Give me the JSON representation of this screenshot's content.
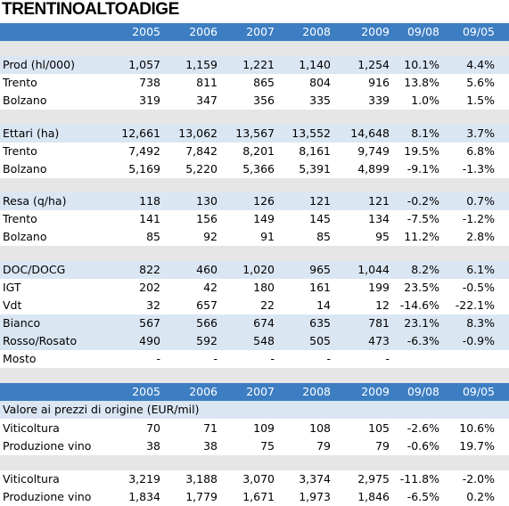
{
  "title": "TRENTINOALTOADIGE",
  "header1": [
    "2005",
    "2006",
    "2007",
    "2008",
    "2009",
    "09/08",
    "09/05"
  ],
  "header2": [
    "2005",
    "2006",
    "2007",
    "2008",
    "2009",
    "09/08",
    "09/05"
  ],
  "sections": [
    {
      "rows": [
        {
          "label": "Prod (hl/000)",
          "values": [
            "1,057",
            "1,159",
            "1,221",
            "1,140",
            "1,254",
            "10.1%",
            "4.4%"
          ]
        },
        {
          "label": "Trento",
          "values": [
            "738",
            "811",
            "865",
            "804",
            "916",
            "13.8%",
            "5.6%"
          ]
        },
        {
          "label": "Bolzano",
          "values": [
            "319",
            "347",
            "356",
            "335",
            "339",
            "1.0%",
            "1.5%"
          ]
        }
      ]
    },
    {
      "rows": [
        {
          "label": "Ettari (ha)",
          "values": [
            "12,661",
            "13,062",
            "13,567",
            "13,552",
            "14,648",
            "8.1%",
            "3.7%"
          ]
        },
        {
          "label": "Trento",
          "values": [
            "7,492",
            "7,842",
            "8,201",
            "8,161",
            "9,749",
            "19.5%",
            "6.8%"
          ]
        },
        {
          "label": "Bolzano",
          "values": [
            "5,169",
            "5,220",
            "5,366",
            "5,391",
            "4,899",
            "-9.1%",
            "-1.3%"
          ]
        }
      ]
    },
    {
      "rows": [
        {
          "label": "Resa (q/ha)",
          "values": [
            "118",
            "130",
            "126",
            "121",
            "121",
            "-0.2%",
            "0.7%"
          ]
        },
        {
          "label": "Trento",
          "values": [
            "141",
            "156",
            "149",
            "145",
            "134",
            "-7.5%",
            "-1.2%"
          ]
        },
        {
          "label": "Bolzano",
          "values": [
            "85",
            "92",
            "91",
            "85",
            "95",
            "11.2%",
            "2.8%"
          ]
        }
      ]
    },
    {
      "rows": [
        {
          "label": "DOC/DOCG",
          "values": [
            "822",
            "460",
            "1,020",
            "965",
            "1,044",
            "8.2%",
            "6.1%"
          ]
        },
        {
          "label": "IGT",
          "values": [
            "202",
            "42",
            "180",
            "161",
            "199",
            "23.5%",
            "-0.5%"
          ]
        },
        {
          "label": "Vdt",
          "values": [
            "32",
            "657",
            "22",
            "14",
            "12",
            "-14.6%",
            "-22.1%"
          ]
        },
        {
          "label": "Bianco",
          "values": [
            "567",
            "566",
            "674",
            "635",
            "781",
            "23.1%",
            "8.3%"
          ]
        },
        {
          "label": "Rosso/Rosato",
          "values": [
            "490",
            "592",
            "548",
            "505",
            "473",
            "-6.3%",
            "-0.9%"
          ]
        },
        {
          "label": "Mosto",
          "values": [
            "-",
            "-",
            "-",
            "-",
            "-",
            "",
            ""
          ]
        }
      ]
    }
  ],
  "value_title": "Valore ai prezzi di origine (EUR/mil)",
  "value_sections": [
    {
      "rows": [
        {
          "label": "Viticoltura",
          "values": [
            "70",
            "71",
            "109",
            "108",
            "105",
            "-2.6%",
            "10.6%"
          ]
        },
        {
          "label": "Produzione vino",
          "values": [
            "38",
            "38",
            "75",
            "79",
            "79",
            "-0.6%",
            "19.7%"
          ]
        }
      ]
    },
    {
      "rows": [
        {
          "label": "Viticoltura",
          "values": [
            "3,219",
            "3,188",
            "3,070",
            "3,374",
            "2,975",
            "-11.8%",
            "-2.0%"
          ]
        },
        {
          "label": "Produzione vino",
          "values": [
            "1,834",
            "1,779",
            "1,671",
            "1,973",
            "1,846",
            "-6.5%",
            "0.2%"
          ]
        }
      ]
    }
  ],
  "colors": {
    "header": "#3d7ec2",
    "band": "#dbe6f3",
    "gap": "#e6e6e6"
  }
}
